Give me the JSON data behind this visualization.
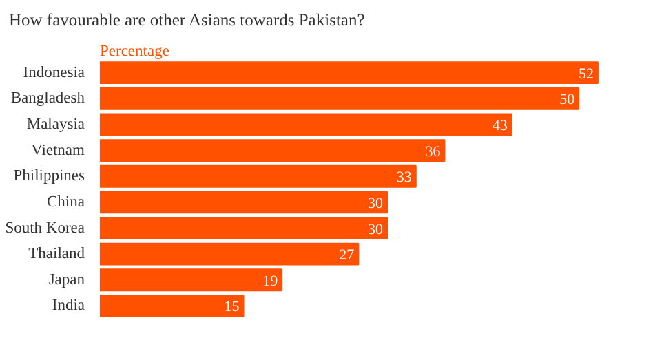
{
  "chart_data": {
    "type": "bar",
    "orientation": "horizontal",
    "title": "How favourable are other Asians towards Pakistan?",
    "xlabel": "Percentage",
    "categories": [
      "Indonesia",
      "Bangladesh",
      "Malaysia",
      "Vietnam",
      "Philippines",
      "China",
      "South Korea",
      "Thailand",
      "Japan",
      "India"
    ],
    "values": [
      52,
      50,
      43,
      36,
      33,
      30,
      30,
      27,
      19,
      15
    ],
    "color": "#ff5100",
    "data_labels": true,
    "grid": false
  }
}
